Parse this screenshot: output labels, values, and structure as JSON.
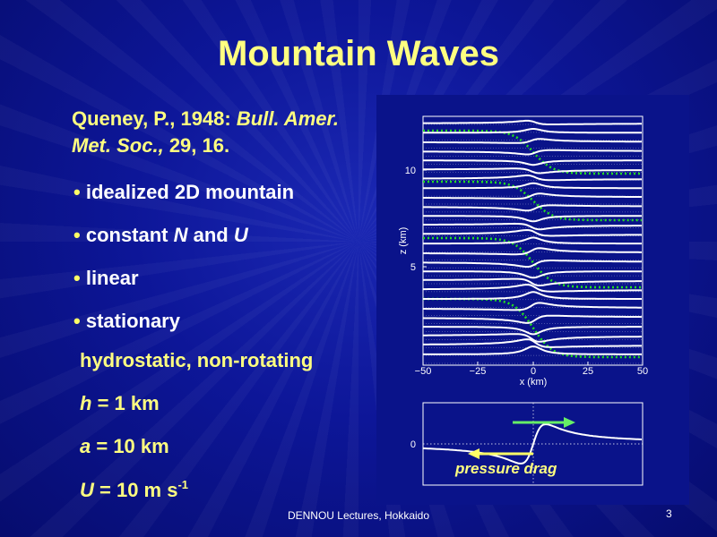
{
  "slide": {
    "title": "Mountain Waves",
    "reference": {
      "authors": "Queney, P., 1948:",
      "journal": "Bull. Amer. Met. Soc.,",
      "volume_pages": "29, 16."
    },
    "bullets": [
      {
        "text": "idealized 2D mountain"
      },
      {
        "prefix": "constant ",
        "var1": "N",
        "mid": " and ",
        "var2": "U"
      },
      {
        "text": "linear"
      },
      {
        "text": "stationary"
      }
    ],
    "assumptions": "hydrostatic, non-rotating",
    "params": {
      "h": {
        "symbol": "h",
        "rest": " = 1 km"
      },
      "a": {
        "symbol": "a",
        "rest": " = 10 km"
      },
      "U": {
        "symbol": "U",
        "rest": " = 10 m s",
        "sup": "-1"
      }
    },
    "footer": "DENNOU Lectures, Hokkaido",
    "page_number": "3"
  },
  "figure": {
    "top_panel": {
      "xlabel": "x (km)",
      "ylabel": "z (km)",
      "x_ticks": [
        "−50",
        "−25",
        "0",
        "25",
        "50"
      ],
      "y_ticks": [
        "5",
        "10"
      ],
      "streamline_color": "#ffffff",
      "displacement_color": "#22dd22"
    },
    "bottom_panel": {
      "y_tick": "0",
      "annotation": "pressure drag",
      "upper_arrow_color": "#66ee66",
      "lower_arrow_color": "#ffff66"
    }
  },
  "colors": {
    "title": "#ffff80",
    "text": "#ffffff",
    "figure_bg": "#0a138a"
  }
}
